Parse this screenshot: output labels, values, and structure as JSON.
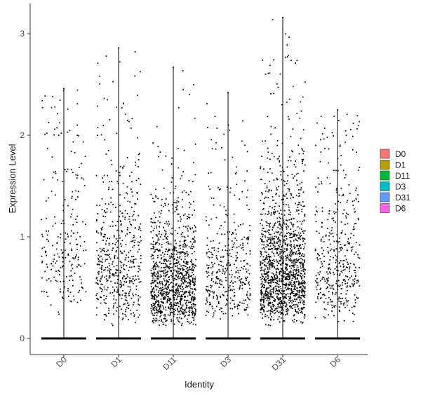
{
  "chart_data": {
    "type": "scatter",
    "subtype": "jittered violin/strip plot",
    "xlabel": "Identity",
    "ylabel": "Expression Level",
    "categories": [
      "D0",
      "D1",
      "D11",
      "D3",
      "D31",
      "D6"
    ],
    "yticks": [
      0,
      1,
      2,
      3
    ],
    "ylim": [
      -0.18,
      3.22
    ],
    "grid": false,
    "legend_position": "right",
    "legend": [
      {
        "label": "D0",
        "color": "#F8766D"
      },
      {
        "label": "D1",
        "color": "#B79F00"
      },
      {
        "label": "D11",
        "color": "#00BA38"
      },
      {
        "label": "D3",
        "color": "#00BFC4"
      },
      {
        "label": "D31",
        "color": "#619CFF"
      },
      {
        "label": "D6",
        "color": "#F564E3"
      }
    ],
    "series": [
      {
        "category": "D0",
        "max": 2.46,
        "n_expressing": 230,
        "median_expressing": 0.9
      },
      {
        "category": "D1",
        "max": 2.86,
        "n_expressing": 520,
        "median_expressing": 0.75
      },
      {
        "category": "D11",
        "max": 2.67,
        "n_expressing": 1100,
        "median_expressing": 0.55
      },
      {
        "category": "D3",
        "max": 2.42,
        "n_expressing": 380,
        "median_expressing": 0.65
      },
      {
        "category": "D31",
        "max": 3.16,
        "n_expressing": 1400,
        "median_expressing": 0.7
      },
      {
        "category": "D6",
        "max": 2.25,
        "n_expressing": 420,
        "median_expressing": 0.75
      }
    ],
    "point_color": "#000000",
    "line_color": "#000000"
  }
}
